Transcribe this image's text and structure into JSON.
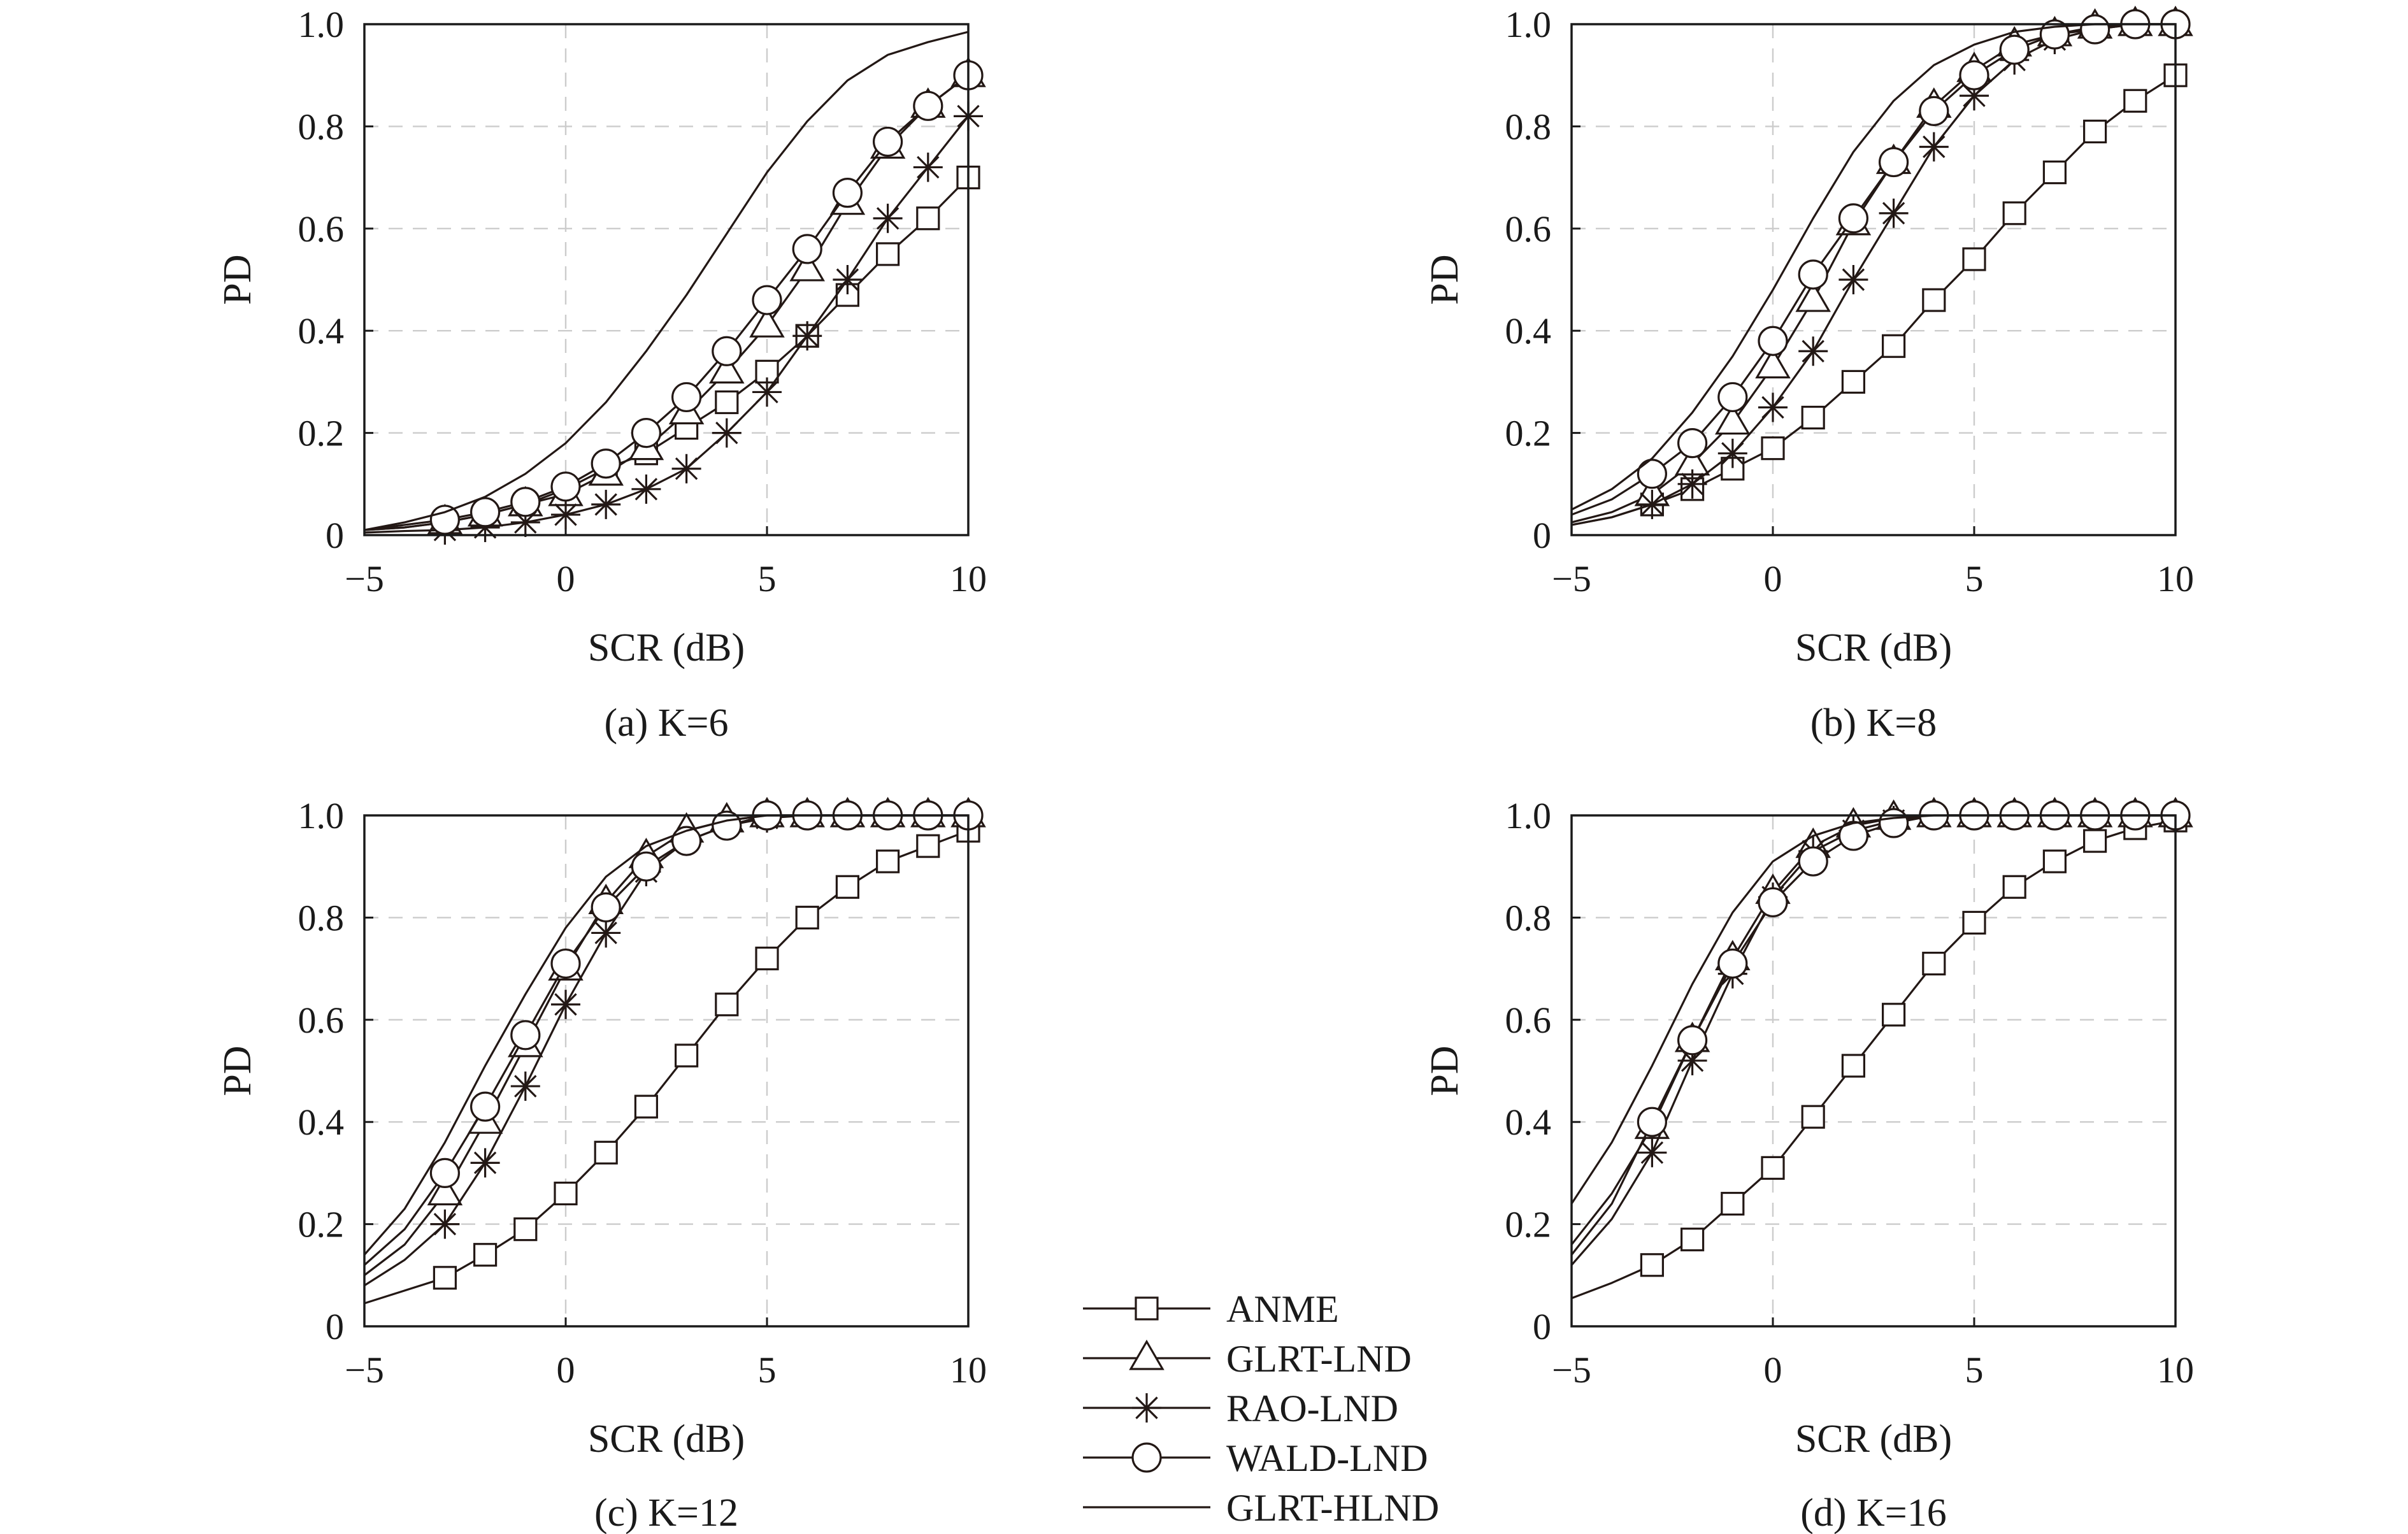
{
  "colors": {
    "line": "#231815",
    "grid": "#cccccc",
    "frame": "#1a1a1a",
    "background": "#ffffff"
  },
  "legend": {
    "entries": [
      {
        "name": "ANME",
        "marker": "square"
      },
      {
        "name": "GLRT-LND",
        "marker": "triangle"
      },
      {
        "name": "RAO-LND",
        "marker": "asterisk"
      },
      {
        "name": "WALD-LND",
        "marker": "circle"
      },
      {
        "name": "GLRT-HLND",
        "marker": "none"
      }
    ]
  },
  "chart_data": [
    {
      "type": "line",
      "caption": "(a) K=6",
      "xlabel": "SCR (dB)",
      "ylabel": "PD",
      "xlim": [
        -5,
        10
      ],
      "ylim": [
        0,
        1
      ],
      "xticks": [
        "−5",
        "0",
        "5",
        "10"
      ],
      "yticks": [
        "0",
        "0.2",
        "0.4",
        "0.6",
        "0.8",
        "1.0"
      ],
      "grid": true,
      "series": [
        {
          "name": "ANME",
          "marker": "square",
          "x": [
            -5,
            -4,
            -3,
            -2,
            -1,
            0,
            1,
            2,
            3,
            4,
            5,
            6,
            7,
            8,
            9,
            10
          ],
          "y": [
            0.01,
            0.015,
            0.025,
            0.04,
            0.06,
            0.09,
            0.13,
            0.16,
            0.21,
            0.26,
            0.32,
            0.39,
            0.47,
            0.55,
            0.62,
            0.7
          ]
        },
        {
          "name": "GLRT-LND",
          "marker": "triangle",
          "x": [
            -5,
            -4,
            -3,
            -2,
            -1,
            0,
            1,
            2,
            3,
            4,
            5,
            6,
            7,
            8,
            9,
            10
          ],
          "y": [
            0.01,
            0.015,
            0.025,
            0.04,
            0.06,
            0.08,
            0.12,
            0.17,
            0.24,
            0.32,
            0.41,
            0.52,
            0.65,
            0.76,
            0.84,
            0.9
          ]
        },
        {
          "name": "RAO-LND",
          "marker": "asterisk",
          "x": [
            -5,
            -4,
            -3,
            -2,
            -1,
            0,
            1,
            2,
            3,
            4,
            5,
            6,
            7,
            8,
            9,
            10
          ],
          "y": [
            0.005,
            0.008,
            0.01,
            0.015,
            0.025,
            0.04,
            0.06,
            0.09,
            0.13,
            0.2,
            0.28,
            0.39,
            0.5,
            0.62,
            0.72,
            0.82
          ]
        },
        {
          "name": "WALD-LND",
          "marker": "circle",
          "x": [
            -5,
            -4,
            -3,
            -2,
            -1,
            0,
            1,
            2,
            3,
            4,
            5,
            6,
            7,
            8,
            9,
            10
          ],
          "y": [
            0.01,
            0.02,
            0.03,
            0.045,
            0.065,
            0.095,
            0.14,
            0.2,
            0.27,
            0.36,
            0.46,
            0.56,
            0.67,
            0.77,
            0.84,
            0.9
          ]
        },
        {
          "name": "GLRT-HLND",
          "marker": "none",
          "x": [
            -5,
            -4,
            -3,
            -2,
            -1,
            0,
            1,
            2,
            3,
            4,
            5,
            6,
            7,
            8,
            9,
            10
          ],
          "y": [
            0.01,
            0.025,
            0.045,
            0.075,
            0.12,
            0.18,
            0.26,
            0.36,
            0.47,
            0.59,
            0.71,
            0.81,
            0.89,
            0.94,
            0.965,
            0.985
          ]
        }
      ]
    },
    {
      "type": "line",
      "caption": "(b) K=8",
      "xlabel": "SCR (dB)",
      "ylabel": "PD",
      "xlim": [
        -5,
        10
      ],
      "ylim": [
        0,
        1
      ],
      "xticks": [
        "−5",
        "0",
        "5",
        "10"
      ],
      "yticks": [
        "0",
        "0.2",
        "0.4",
        "0.6",
        "0.8",
        "1.0"
      ],
      "grid": true,
      "series": [
        {
          "name": "ANME",
          "marker": "square",
          "x": [
            -5,
            -4,
            -3,
            -2,
            -1,
            0,
            1,
            2,
            3,
            4,
            5,
            6,
            7,
            8,
            9,
            10
          ],
          "y": [
            0.02,
            0.035,
            0.06,
            0.09,
            0.13,
            0.17,
            0.23,
            0.3,
            0.37,
            0.46,
            0.54,
            0.63,
            0.71,
            0.79,
            0.85,
            0.9
          ]
        },
        {
          "name": "GLRT-LND",
          "marker": "triangle",
          "x": [
            -5,
            -4,
            -3,
            -2,
            -1,
            0,
            1,
            2,
            3,
            4,
            5,
            6,
            7,
            8,
            9,
            10
          ],
          "y": [
            0.025,
            0.045,
            0.08,
            0.14,
            0.22,
            0.33,
            0.46,
            0.61,
            0.73,
            0.84,
            0.91,
            0.96,
            0.98,
            0.995,
            1.0,
            1.0
          ]
        },
        {
          "name": "RAO-LND",
          "marker": "asterisk",
          "x": [
            -5,
            -4,
            -3,
            -2,
            -1,
            0,
            1,
            2,
            3,
            4,
            5,
            6,
            7,
            8,
            9,
            10
          ],
          "y": [
            0.02,
            0.035,
            0.06,
            0.1,
            0.16,
            0.25,
            0.36,
            0.5,
            0.63,
            0.76,
            0.86,
            0.93,
            0.97,
            0.99,
            1.0,
            1.0
          ]
        },
        {
          "name": "WALD-LND",
          "marker": "circle",
          "x": [
            -5,
            -4,
            -3,
            -2,
            -1,
            0,
            1,
            2,
            3,
            4,
            5,
            6,
            7,
            8,
            9,
            10
          ],
          "y": [
            0.04,
            0.07,
            0.12,
            0.18,
            0.27,
            0.38,
            0.51,
            0.62,
            0.73,
            0.83,
            0.9,
            0.95,
            0.98,
            0.99,
            1.0,
            1.0
          ]
        },
        {
          "name": "GLRT-HLND",
          "marker": "none",
          "x": [
            -5,
            -4,
            -3,
            -2,
            -1,
            0,
            1,
            2,
            3,
            4,
            5,
            6,
            7,
            8,
            9,
            10
          ],
          "y": [
            0.05,
            0.09,
            0.15,
            0.24,
            0.35,
            0.48,
            0.62,
            0.75,
            0.85,
            0.92,
            0.96,
            0.985,
            0.995,
            1.0,
            1.0,
            1.0
          ]
        }
      ]
    },
    {
      "type": "line",
      "caption": "(c) K=12",
      "xlabel": "SCR (dB)",
      "ylabel": "PD",
      "xlim": [
        -5,
        10
      ],
      "ylim": [
        0,
        1
      ],
      "xticks": [
        "−5",
        "0",
        "5",
        "10"
      ],
      "yticks": [
        "0",
        "0.2",
        "0.4",
        "0.6",
        "0.8",
        "1.0"
      ],
      "grid": true,
      "series": [
        {
          "name": "ANME",
          "marker": "square",
          "x": [
            -5,
            -4,
            -3,
            -2,
            -1,
            0,
            1,
            2,
            3,
            4,
            5,
            6,
            7,
            8,
            9,
            10
          ],
          "y": [
            0.045,
            0.07,
            0.095,
            0.14,
            0.19,
            0.26,
            0.34,
            0.43,
            0.53,
            0.63,
            0.72,
            0.8,
            0.86,
            0.91,
            0.94,
            0.97
          ]
        },
        {
          "name": "GLRT-LND",
          "marker": "triangle",
          "x": [
            -5,
            -4,
            -3,
            -2,
            -1,
            0,
            1,
            2,
            3,
            4,
            5,
            6,
            7,
            8,
            9,
            10
          ],
          "y": [
            0.1,
            0.16,
            0.26,
            0.4,
            0.55,
            0.7,
            0.83,
            0.92,
            0.97,
            0.99,
            1.0,
            1.0,
            1.0,
            1.0,
            1.0,
            1.0
          ]
        },
        {
          "name": "RAO-LND",
          "marker": "asterisk",
          "x": [
            -5,
            -4,
            -3,
            -2,
            -1,
            0,
            1,
            2,
            3,
            4,
            5,
            6,
            7,
            8,
            9,
            10
          ],
          "y": [
            0.08,
            0.13,
            0.2,
            0.32,
            0.47,
            0.63,
            0.77,
            0.89,
            0.95,
            0.98,
            0.995,
            1.0,
            1.0,
            1.0,
            1.0,
            1.0
          ]
        },
        {
          "name": "WALD-LND",
          "marker": "circle",
          "x": [
            -5,
            -4,
            -3,
            -2,
            -1,
            0,
            1,
            2,
            3,
            4,
            5,
            6,
            7,
            8,
            9,
            10
          ],
          "y": [
            0.12,
            0.19,
            0.3,
            0.43,
            0.57,
            0.71,
            0.82,
            0.9,
            0.95,
            0.98,
            1.0,
            1.0,
            1.0,
            1.0,
            1.0,
            1.0
          ]
        },
        {
          "name": "GLRT-HLND",
          "marker": "none",
          "x": [
            -5,
            -4,
            -3,
            -2,
            -1,
            0,
            1,
            2,
            3,
            4,
            5,
            6,
            7,
            8,
            9,
            10
          ],
          "y": [
            0.14,
            0.23,
            0.36,
            0.51,
            0.65,
            0.78,
            0.88,
            0.94,
            0.97,
            0.99,
            1.0,
            1.0,
            1.0,
            1.0,
            1.0,
            1.0
          ]
        }
      ]
    },
    {
      "type": "line",
      "caption": "(d) K=16",
      "xlabel": "SCR (dB)",
      "ylabel": "PD",
      "xlim": [
        -5,
        10
      ],
      "ylim": [
        0,
        1
      ],
      "xticks": [
        "−5",
        "0",
        "5",
        "10"
      ],
      "yticks": [
        "0",
        "0.2",
        "0.4",
        "0.6",
        "0.8",
        "1.0"
      ],
      "grid": true,
      "series": [
        {
          "name": "ANME",
          "marker": "square",
          "x": [
            -5,
            -4,
            -3,
            -2,
            -1,
            0,
            1,
            2,
            3,
            4,
            5,
            6,
            7,
            8,
            9,
            10
          ],
          "y": [
            0.055,
            0.085,
            0.12,
            0.17,
            0.24,
            0.31,
            0.41,
            0.51,
            0.61,
            0.71,
            0.79,
            0.86,
            0.91,
            0.95,
            0.975,
            0.99
          ]
        },
        {
          "name": "GLRT-LND",
          "marker": "triangle",
          "x": [
            -5,
            -4,
            -3,
            -2,
            -1,
            0,
            1,
            2,
            3,
            4,
            5,
            6,
            7,
            8,
            9,
            10
          ],
          "y": [
            0.16,
            0.26,
            0.39,
            0.56,
            0.72,
            0.85,
            0.94,
            0.98,
            0.995,
            1.0,
            1.0,
            1.0,
            1.0,
            1.0,
            1.0,
            1.0
          ]
        },
        {
          "name": "RAO-LND",
          "marker": "asterisk",
          "x": [
            -5,
            -4,
            -3,
            -2,
            -1,
            0,
            1,
            2,
            3,
            4,
            5,
            6,
            7,
            8,
            9,
            10
          ],
          "y": [
            0.12,
            0.21,
            0.34,
            0.52,
            0.69,
            0.84,
            0.93,
            0.97,
            0.99,
            1.0,
            1.0,
            1.0,
            1.0,
            1.0,
            1.0,
            1.0
          ]
        },
        {
          "name": "WALD-LND",
          "marker": "circle",
          "x": [
            -5,
            -4,
            -3,
            -2,
            -1,
            0,
            1,
            2,
            3,
            4,
            5,
            6,
            7,
            8,
            9,
            10
          ],
          "y": [
            0.14,
            0.24,
            0.4,
            0.56,
            0.71,
            0.83,
            0.91,
            0.96,
            0.985,
            1.0,
            1.0,
            1.0,
            1.0,
            1.0,
            1.0,
            1.0
          ]
        },
        {
          "name": "GLRT-HLND",
          "marker": "none",
          "x": [
            -5,
            -4,
            -3,
            -2,
            -1,
            0,
            1,
            2,
            3,
            4,
            5,
            6,
            7,
            8,
            9,
            10
          ],
          "y": [
            0.24,
            0.36,
            0.51,
            0.67,
            0.81,
            0.91,
            0.96,
            0.985,
            0.995,
            1.0,
            1.0,
            1.0,
            1.0,
            1.0,
            1.0,
            1.0
          ]
        }
      ]
    }
  ]
}
